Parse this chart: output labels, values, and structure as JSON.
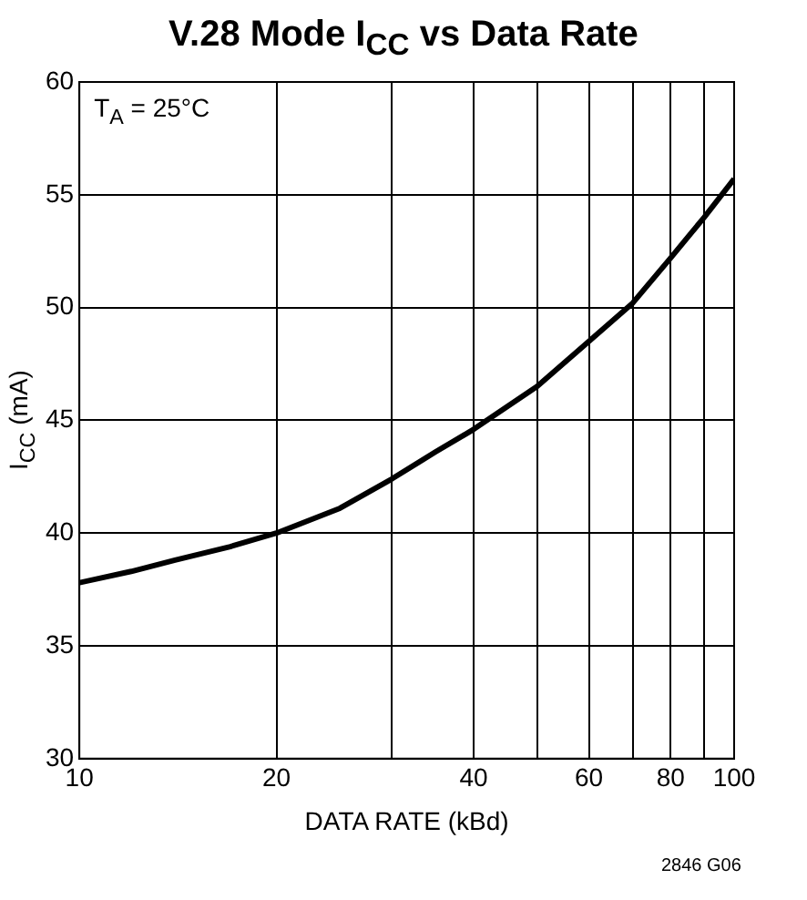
{
  "chart_data": {
    "type": "line",
    "title": "V.28 Mode I$_{CC}$ vs Data Rate",
    "xlabel": "DATA RATE (kBd)",
    "ylabel": "I$_{CC}$ (mA)",
    "annotations": [
      "T$_{A}$ = 25°C",
      "2846 G06"
    ],
    "x": [
      10,
      12,
      14,
      17,
      20,
      25,
      30,
      35,
      40,
      50,
      60,
      70,
      80,
      90,
      100
    ],
    "series": [
      {
        "color": "#000000",
        "values": [
          37.8,
          38.3,
          38.8,
          39.4,
          40.0,
          41.1,
          42.4,
          43.6,
          44.6,
          46.5,
          48.5,
          50.2,
          52.2,
          54.0,
          55.7
        ]
      }
    ],
    "log": "x",
    "xlim": [
      10,
      100
    ],
    "xticks": [
      10,
      20,
      {
        "value": 30,
        "label": null
      },
      40,
      {
        "value": 50,
        "label": null
      },
      60,
      {
        "value": 70,
        "label": null
      },
      80,
      {
        "value": 90,
        "label": null
      },
      100
    ],
    "ylim": [
      30,
      60
    ],
    "yticks": [
      30,
      35,
      40,
      45,
      50,
      55,
      60
    ],
    "grid": true,
    "legend": false,
    "marker": "none",
    "line_style": "solid"
  }
}
